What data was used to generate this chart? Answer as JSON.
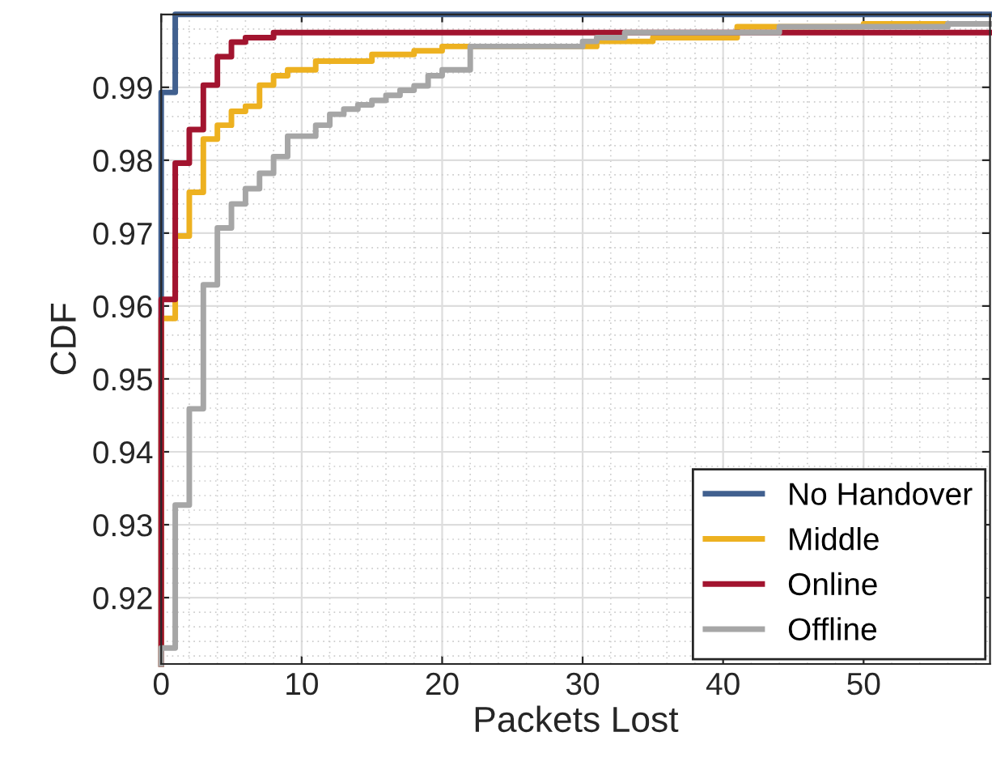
{
  "chart_data": {
    "type": "step",
    "xlabel": "Packets Lost",
    "ylabel": "CDF",
    "xlim": [
      0,
      59
    ],
    "ylim": [
      0.9109,
      1.0
    ],
    "xticks": [
      0,
      10,
      20,
      30,
      40,
      50
    ],
    "yticks": [
      0.92,
      0.93,
      0.94,
      0.95,
      0.96,
      0.97,
      0.98,
      0.99
    ],
    "grid": true,
    "legend": "bottom right",
    "marker": "none",
    "line_style": "solid",
    "series": [
      {
        "name": "No Handover",
        "color": "#41608f",
        "x": [
          0,
          0,
          1,
          59
        ],
        "values": [
          0.9109,
          0.9893,
          1.0,
          1.0
        ]
      },
      {
        "name": "Middle",
        "color": "#edb120",
        "x": [
          0,
          0,
          1,
          2,
          3,
          4,
          5,
          6,
          7,
          8,
          9,
          11,
          15,
          18,
          20,
          31,
          35,
          41,
          50,
          59
        ],
        "values": [
          0.9109,
          0.9583,
          0.9696,
          0.9756,
          0.9829,
          0.9848,
          0.9867,
          0.9874,
          0.9903,
          0.9916,
          0.9924,
          0.9936,
          0.9945,
          0.995,
          0.9956,
          0.9963,
          0.9968,
          0.9983,
          0.9987,
          0.9987
        ]
      },
      {
        "name": "Online",
        "color": "#a2142f",
        "x": [
          0,
          0,
          1,
          2,
          3,
          4,
          5,
          6,
          8,
          59
        ],
        "values": [
          0.9109,
          0.9609,
          0.9796,
          0.9842,
          0.9903,
          0.9942,
          0.9962,
          0.9968,
          0.9975,
          0.9975
        ]
      },
      {
        "name": "Offline",
        "color": "#a6a6a6",
        "x": [
          0,
          0,
          1,
          2,
          3,
          4,
          5,
          6,
          7,
          8,
          9,
          11,
          12,
          13,
          14,
          15,
          16,
          17,
          18,
          19,
          20,
          22,
          30,
          31,
          33,
          44,
          56,
          59
        ],
        "values": [
          0.9109,
          0.9131,
          0.9327,
          0.9459,
          0.9629,
          0.9707,
          0.974,
          0.9761,
          0.9782,
          0.9805,
          0.9833,
          0.9848,
          0.9863,
          0.987,
          0.9876,
          0.9882,
          0.9889,
          0.9896,
          0.9902,
          0.9916,
          0.9924,
          0.9956,
          0.9963,
          0.9968,
          0.9975,
          0.9983,
          0.9987,
          0.9987
        ]
      }
    ]
  }
}
